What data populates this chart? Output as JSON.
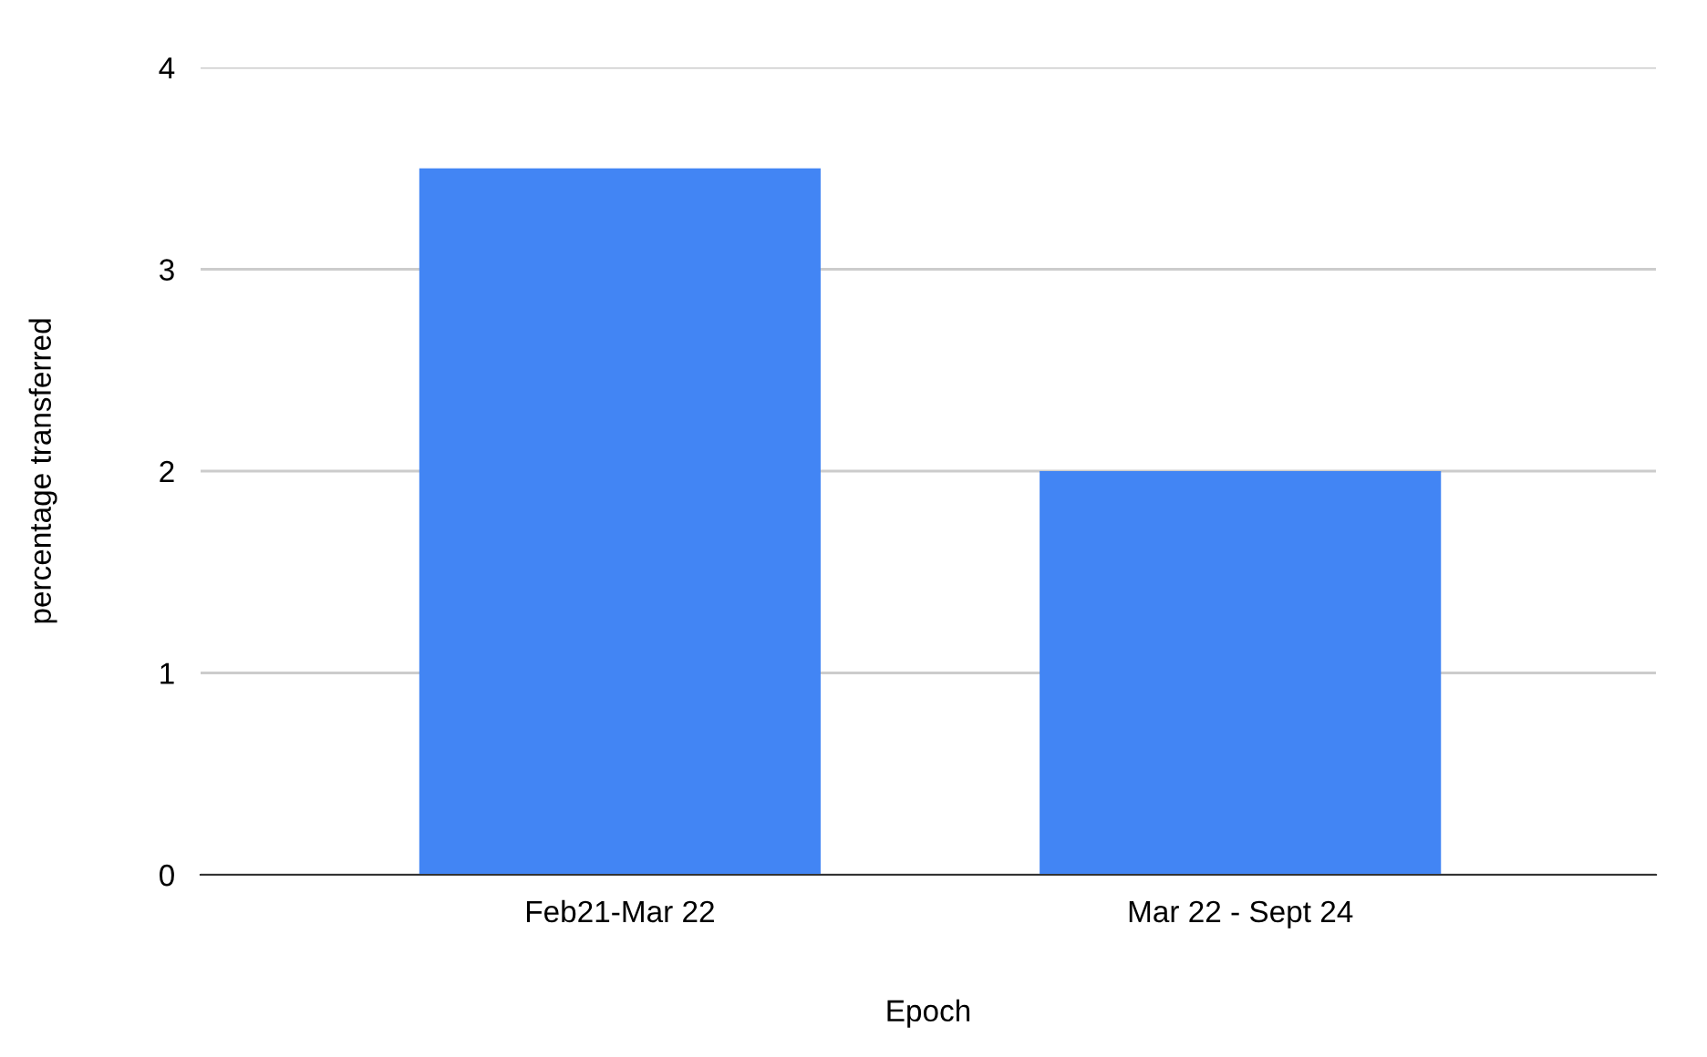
{
  "chart_data": {
    "type": "bar",
    "xlabel": "Epoch",
    "ylabel": "percentage transferred",
    "categories": [
      "Feb21-Mar 22",
      "Mar 22 - Sept 24"
    ],
    "values": [
      3.5,
      2.0
    ],
    "color": "#4285f4",
    "ylim": [
      0,
      4
    ],
    "yticks": [
      0,
      1,
      2,
      3,
      4
    ],
    "grid": "y",
    "legend": false
  }
}
